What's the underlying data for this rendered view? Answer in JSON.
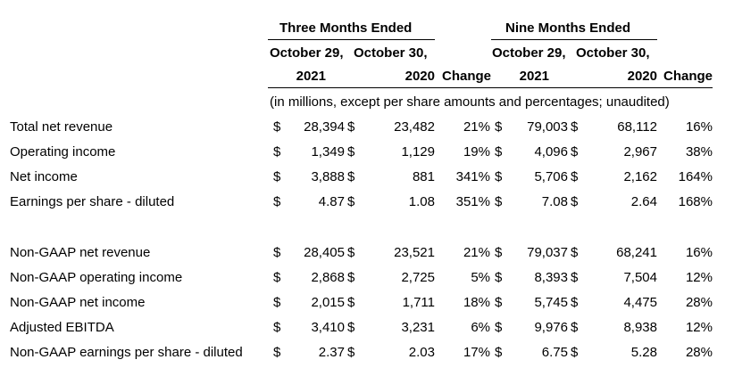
{
  "header": {
    "three_months": "Three Months Ended",
    "nine_months": "Nine Months Ended",
    "oct29": "October 29,",
    "oct30": "October 30,",
    "y2021": "2021",
    "y2020": "2020",
    "change": "Change",
    "note": "(in millions, except per share amounts and percentages; unaudited)"
  },
  "gaap_rows": [
    {
      "label": "Total net revenue",
      "d1": "$",
      "q21": "28,394",
      "d2": "$",
      "q20": "23,482",
      "qchg": "21%",
      "d3": "$",
      "n21": "79,003",
      "d4": "$",
      "n20": "68,112",
      "nchg": "16%"
    },
    {
      "label": "Operating income",
      "d1": "$",
      "q21": "1,349",
      "d2": "$",
      "q20": "1,129",
      "qchg": "19%",
      "d3": "$",
      "n21": "4,096",
      "d4": "$",
      "n20": "2,967",
      "nchg": "38%"
    },
    {
      "label": "Net income",
      "d1": "$",
      "q21": "3,888",
      "d2": "$",
      "q20": "881",
      "qchg": "341%",
      "d3": "$",
      "n21": "5,706",
      "d4": "$",
      "n20": "2,162",
      "nchg": "164%"
    },
    {
      "label": "Earnings per share - diluted",
      "d1": "$",
      "q21": "4.87",
      "d2": "$",
      "q20": "1.08",
      "qchg": "351%",
      "d3": "$",
      "n21": "7.08",
      "d4": "$",
      "n20": "2.64",
      "nchg": "168%"
    }
  ],
  "non_gaap_rows": [
    {
      "label": "Non-GAAP net revenue",
      "d1": "$",
      "q21": "28,405",
      "d2": "$",
      "q20": "23,521",
      "qchg": "21%",
      "d3": "$",
      "n21": "79,037",
      "d4": "$",
      "n20": "68,241",
      "nchg": "16%"
    },
    {
      "label": "Non-GAAP operating income",
      "d1": "$",
      "q21": "2,868",
      "d2": "$",
      "q20": "2,725",
      "qchg": "5%",
      "d3": "$",
      "n21": "8,393",
      "d4": "$",
      "n20": "7,504",
      "nchg": "12%"
    },
    {
      "label": "Non-GAAP net income",
      "d1": "$",
      "q21": "2,015",
      "d2": "$",
      "q20": "1,711",
      "qchg": "18%",
      "d3": "$",
      "n21": "5,745",
      "d4": "$",
      "n20": "4,475",
      "nchg": "28%"
    },
    {
      "label": "Adjusted EBITDA",
      "d1": "$",
      "q21": "3,410",
      "d2": "$",
      "q20": "3,231",
      "qchg": "6%",
      "d3": "$",
      "n21": "9,976",
      "d4": "$",
      "n20": "8,938",
      "nchg": "12%"
    },
    {
      "label": "Non-GAAP earnings per share - diluted",
      "d1": "$",
      "q21": "2.37",
      "d2": "$",
      "q20": "2.03",
      "qchg": "17%",
      "d3": "$",
      "n21": "6.75",
      "d4": "$",
      "n20": "5.28",
      "nchg": "28%"
    }
  ]
}
